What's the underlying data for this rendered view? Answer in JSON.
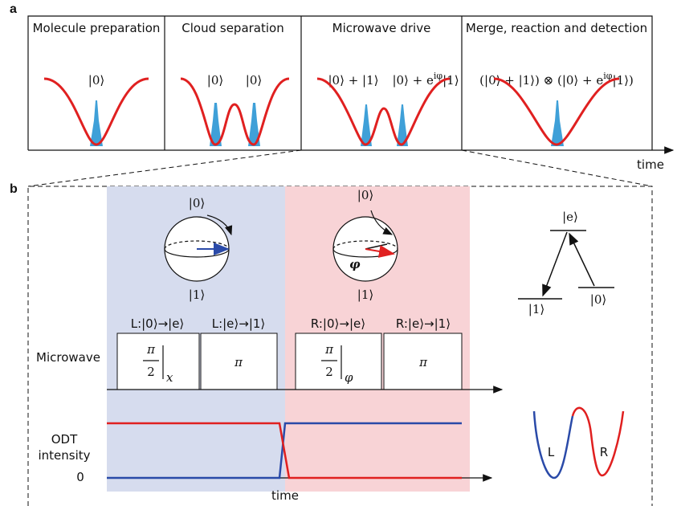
{
  "panel_a": {
    "label": "a",
    "axis_label": "time",
    "stages": [
      {
        "title": "Molecule preparation",
        "states": [
          {
            "text": "|0⟩"
          }
        ]
      },
      {
        "title": "Cloud separation",
        "states": [
          {
            "text": "|0⟩"
          },
          {
            "text": "|0⟩"
          }
        ]
      },
      {
        "title": "Microwave drive",
        "states": [
          {
            "text": "|0⟩ + |1⟩"
          },
          {
            "text": "|0⟩ + e",
            "sup": "iφ",
            "rest": "|1⟩"
          }
        ]
      },
      {
        "title": "Merge, reaction and detection",
        "states": [
          {
            "text": "(|0⟩ + |1⟩) ⊗ (|0⟩ + e",
            "sup": "iφ",
            "rest": "|1⟩)"
          }
        ]
      }
    ]
  },
  "panel_b": {
    "label": "b",
    "bloch_left": {
      "top": "|0⟩",
      "bottom": "|1⟩"
    },
    "bloch_right": {
      "top": "|0⟩",
      "bottom": "|1⟩",
      "angle": "φ"
    },
    "pulse_row_label": "Microwave",
    "pulses": [
      {
        "label": "L:|0⟩→|e⟩",
        "numerator": "π",
        "denominator": "2",
        "axis": "x"
      },
      {
        "label": "L:|e⟩→|1⟩",
        "angle": "π"
      },
      {
        "label": "R:|0⟩→|e⟩",
        "numerator": "π",
        "denominator": "2",
        "axis": "φ"
      },
      {
        "label": "R:|e⟩→|1⟩",
        "angle": "π"
      }
    ],
    "odt_label": [
      "ODT",
      "intensity"
    ],
    "zero": "0",
    "time": "time",
    "levels": {
      "excited": "|e⟩",
      "lower_left": "|1⟩",
      "lower_right": "|0⟩"
    },
    "wells": {
      "left": "L",
      "right": "R"
    }
  }
}
